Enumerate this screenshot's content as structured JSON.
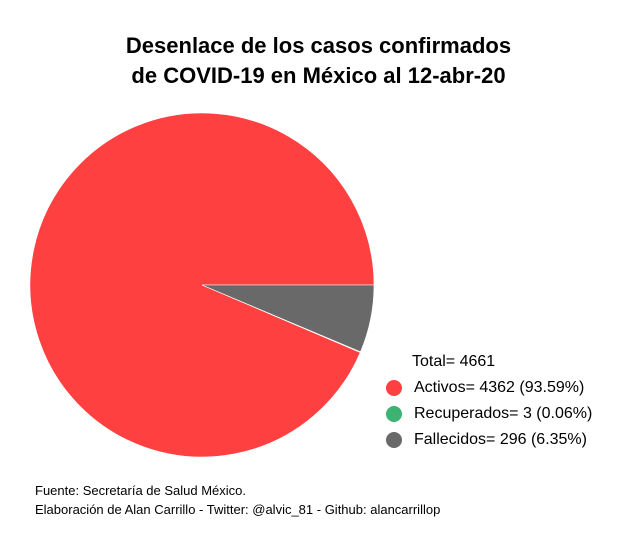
{
  "chart_data": {
    "type": "pie",
    "title_lines": [
      "Desenlace de los casos confirmados",
      "de COVID-19 en México al 12-abr-20"
    ],
    "legend_total": "Total= 4661",
    "slices": [
      {
        "label": "Activos= 4362 (93.59%)",
        "value": 4362,
        "color": "#ff4040"
      },
      {
        "label": "Recuperados= 3 (0.06%)",
        "value": 3,
        "color": "#3cb371"
      },
      {
        "label": "Fallecidos= 296 (6.35%)",
        "value": 296,
        "color": "#696969"
      }
    ],
    "legend_position": "bottom-right"
  },
  "caption": {
    "line1": "Fuente: Secretaría de Salud México.",
    "line2": "Elaboración de Alan Carrillo - Twitter: @alvic_81 - Github: alancarrillop"
  }
}
